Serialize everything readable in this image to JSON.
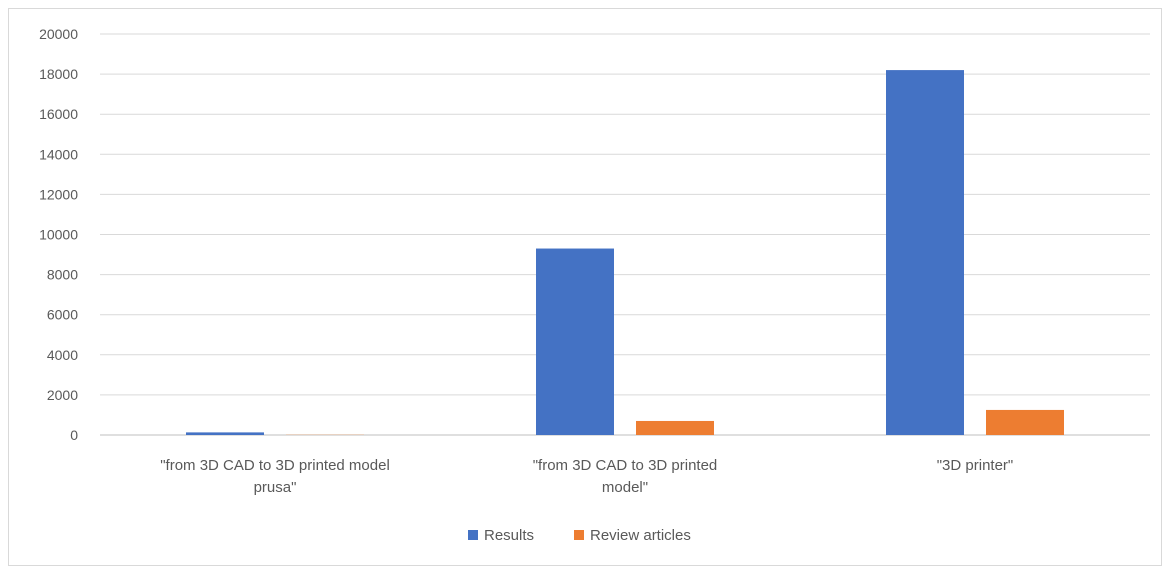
{
  "chart_data": {
    "type": "bar",
    "categories": [
      "\"from 3D CAD to 3D printed model prusa\"",
      "\"from 3D CAD to 3D printed model\"",
      "\"3D printer\""
    ],
    "category_lines": [
      [
        "\"from 3D CAD to 3D printed model",
        "prusa\""
      ],
      [
        "\"from 3D CAD to 3D printed",
        "model\""
      ],
      [
        "\"3D printer\""
      ]
    ],
    "series": [
      {
        "name": "Results",
        "values": [
          130,
          9300,
          18200
        ],
        "color": "#4472c4"
      },
      {
        "name": "Review articles",
        "values": [
          10,
          700,
          1250
        ],
        "color": "#ed7d31"
      }
    ],
    "ylim": [
      0,
      20000
    ],
    "yticks": [
      0,
      2000,
      4000,
      6000,
      8000,
      10000,
      12000,
      14000,
      16000,
      18000,
      20000
    ],
    "grid": true,
    "legend_position": "bottom",
    "gridline_color": "#d9d9d9",
    "axis_color": "#bfbfbf"
  }
}
